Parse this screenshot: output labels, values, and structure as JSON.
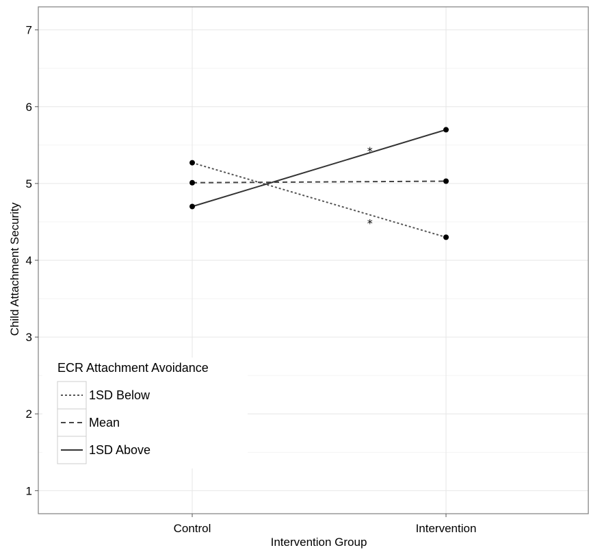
{
  "chart_data": {
    "type": "line",
    "categories": [
      "Control",
      "Intervention"
    ],
    "xlabel": "Intervention Group",
    "ylabel": "Child Attachment Security",
    "ylim": [
      0.7,
      7.3
    ],
    "yticks": [
      1,
      2,
      3,
      4,
      5,
      6,
      7
    ],
    "grid": true,
    "legend": {
      "title": "ECR Attachment Avoidance",
      "placement": "bottom-left inside"
    },
    "series": [
      {
        "name": "1SD Below",
        "values": [
          5.27,
          4.3
        ],
        "linestyle": "dotted",
        "color": "#555555"
      },
      {
        "name": "Mean",
        "values": [
          5.01,
          5.03
        ],
        "linestyle": "dashed",
        "color": "#444444"
      },
      {
        "name": "1SD Above",
        "values": [
          4.7,
          5.7
        ],
        "linestyle": "solid",
        "color": "#333333"
      }
    ],
    "annotations": [
      {
        "text": "*",
        "x": 1.7,
        "y": 5.47
      },
      {
        "text": "*",
        "x": 1.7,
        "y": 4.53
      }
    ]
  }
}
